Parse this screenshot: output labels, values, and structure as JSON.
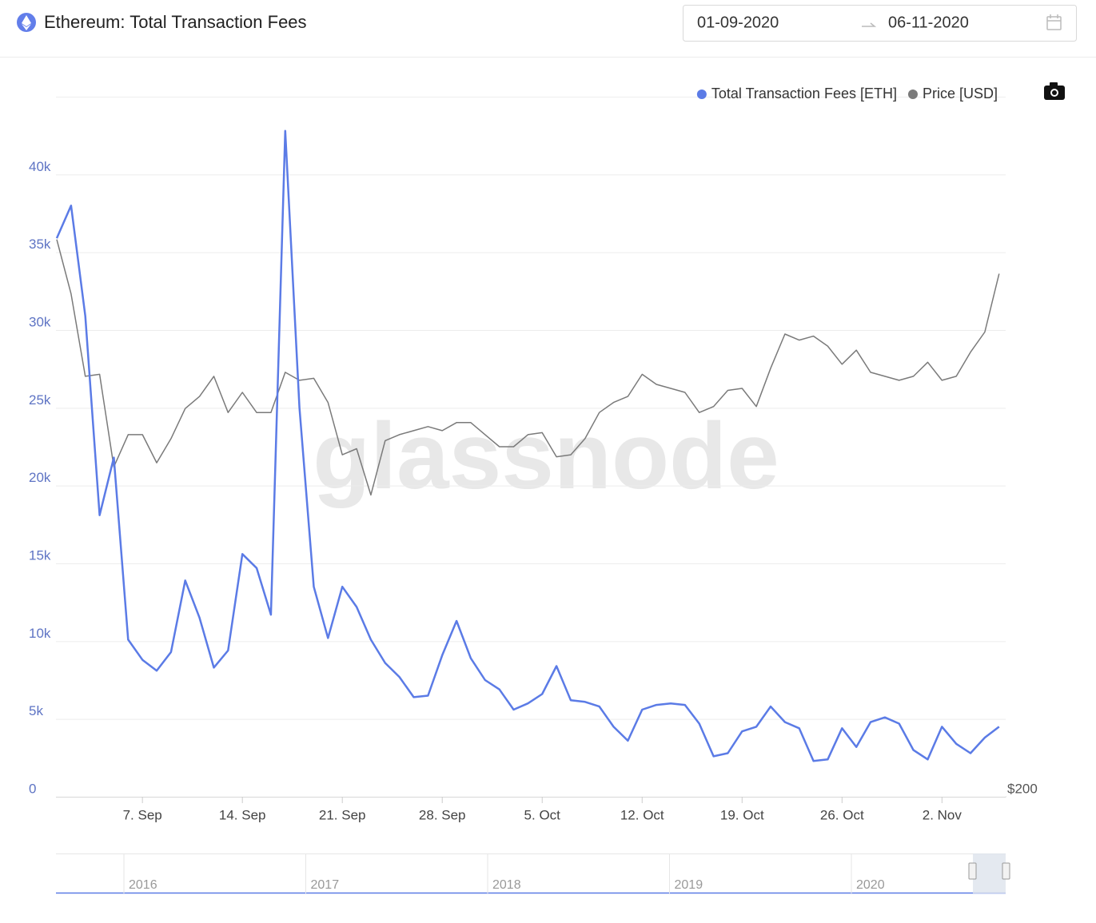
{
  "header": {
    "title": "Ethereum: Total Transaction Fees",
    "date_from": "01-09-2020",
    "date_to": "06-11-2020"
  },
  "watermark": "glassnode",
  "chart_data": {
    "type": "line",
    "x": [
      "1. Sep",
      "2. Sep",
      "3. Sep",
      "4. Sep",
      "5. Sep",
      "6. Sep",
      "7. Sep",
      "8. Sep",
      "9. Sep",
      "10. Sep",
      "11. Sep",
      "12. Sep",
      "13. Sep",
      "14. Sep",
      "15. Sep",
      "16. Sep",
      "17. Sep",
      "18. Sep",
      "19. Sep",
      "20. Sep",
      "21. Sep",
      "22. Sep",
      "23. Sep",
      "24. Sep",
      "25. Sep",
      "26. Sep",
      "27. Sep",
      "28. Sep",
      "29. Sep",
      "30. Sep",
      "1. Oct",
      "2. Oct",
      "3. Oct",
      "4. Oct",
      "5. Oct",
      "6. Oct",
      "7. Oct",
      "8. Oct",
      "9. Oct",
      "10. Oct",
      "11. Oct",
      "12. Oct",
      "13. Oct",
      "14. Oct",
      "15. Oct",
      "16. Oct",
      "17. Oct",
      "18. Oct",
      "19. Oct",
      "20. Oct",
      "21. Oct",
      "22. Oct",
      "23. Oct",
      "24. Oct",
      "25. Oct",
      "26. Oct",
      "27. Oct",
      "28. Oct",
      "29. Oct",
      "30. Oct",
      "31. Oct",
      "1. Nov",
      "2. Nov",
      "3. Nov",
      "4. Nov",
      "5. Nov",
      "6. Nov"
    ],
    "series": [
      {
        "name": "Total Transaction Fees [ETH]",
        "color": "#5b7be6",
        "values": [
          35900,
          38000,
          30900,
          18100,
          21800,
          10100,
          8800,
          8100,
          9300,
          13900,
          11500,
          8300,
          9400,
          15600,
          14700,
          11700,
          42800,
          25000,
          13500,
          10200,
          13500,
          12200,
          10100,
          8600,
          7700,
          6400,
          6500,
          9100,
          11300,
          8900,
          7500,
          6900,
          5600,
          6000,
          6600,
          8400,
          6200,
          6100,
          5800,
          4500,
          3600,
          5600,
          5900,
          6000,
          5900,
          4700,
          2600,
          2800,
          4200,
          4500,
          5800,
          4800,
          4400,
          2300,
          2400,
          4400,
          3200,
          4800,
          5100,
          4700,
          3000,
          2400,
          4500,
          3400,
          2800,
          3800,
          4500
        ]
      },
      {
        "name": "Price [USD]",
        "color": "#7a7a7a",
        "axis": "y2",
        "values": [
          477,
          450,
          409,
          410,
          364,
          380,
          380,
          366,
          378,
          393,
          399,
          409,
          391,
          401,
          391,
          391,
          411,
          407,
          408,
          396,
          370,
          373,
          350,
          377,
          380,
          382,
          384,
          382,
          386,
          386,
          380,
          374,
          374,
          380,
          381,
          369,
          370,
          378,
          391,
          396,
          399,
          410,
          405,
          403,
          401,
          391,
          394,
          402,
          403,
          394,
          413,
          430,
          427,
          429,
          424,
          415,
          422,
          411,
          409,
          407,
          409,
          416,
          407,
          409,
          421,
          431,
          460
        ]
      }
    ],
    "ylim": [
      0,
      45000
    ],
    "yticks": [
      0,
      {
        "value": 5000,
        "label": "5k"
      },
      {
        "value": 10000,
        "label": "10k"
      },
      {
        "value": 15000,
        "label": "15k"
      },
      {
        "value": 20000,
        "label": "20k"
      },
      {
        "value": 25000,
        "label": "25k"
      },
      {
        "value": 30000,
        "label": "30k"
      },
      {
        "value": 35000,
        "label": "35k"
      },
      {
        "value": 40000,
        "label": "40k"
      }
    ],
    "y2lim": [
      200,
      548
    ],
    "y2ticks": [
      {
        "value": 200,
        "label": "$200"
      }
    ],
    "xticks": [
      "7. Sep",
      "14. Sep",
      "21. Sep",
      "28. Sep",
      "5. Oct",
      "12. Oct",
      "19. Oct",
      "26. Oct",
      "2. Nov"
    ],
    "grid": true,
    "legend": "top-right"
  },
  "navigator": {
    "labels": [
      "2016",
      "2017",
      "2018",
      "2019",
      "2020"
    ]
  }
}
